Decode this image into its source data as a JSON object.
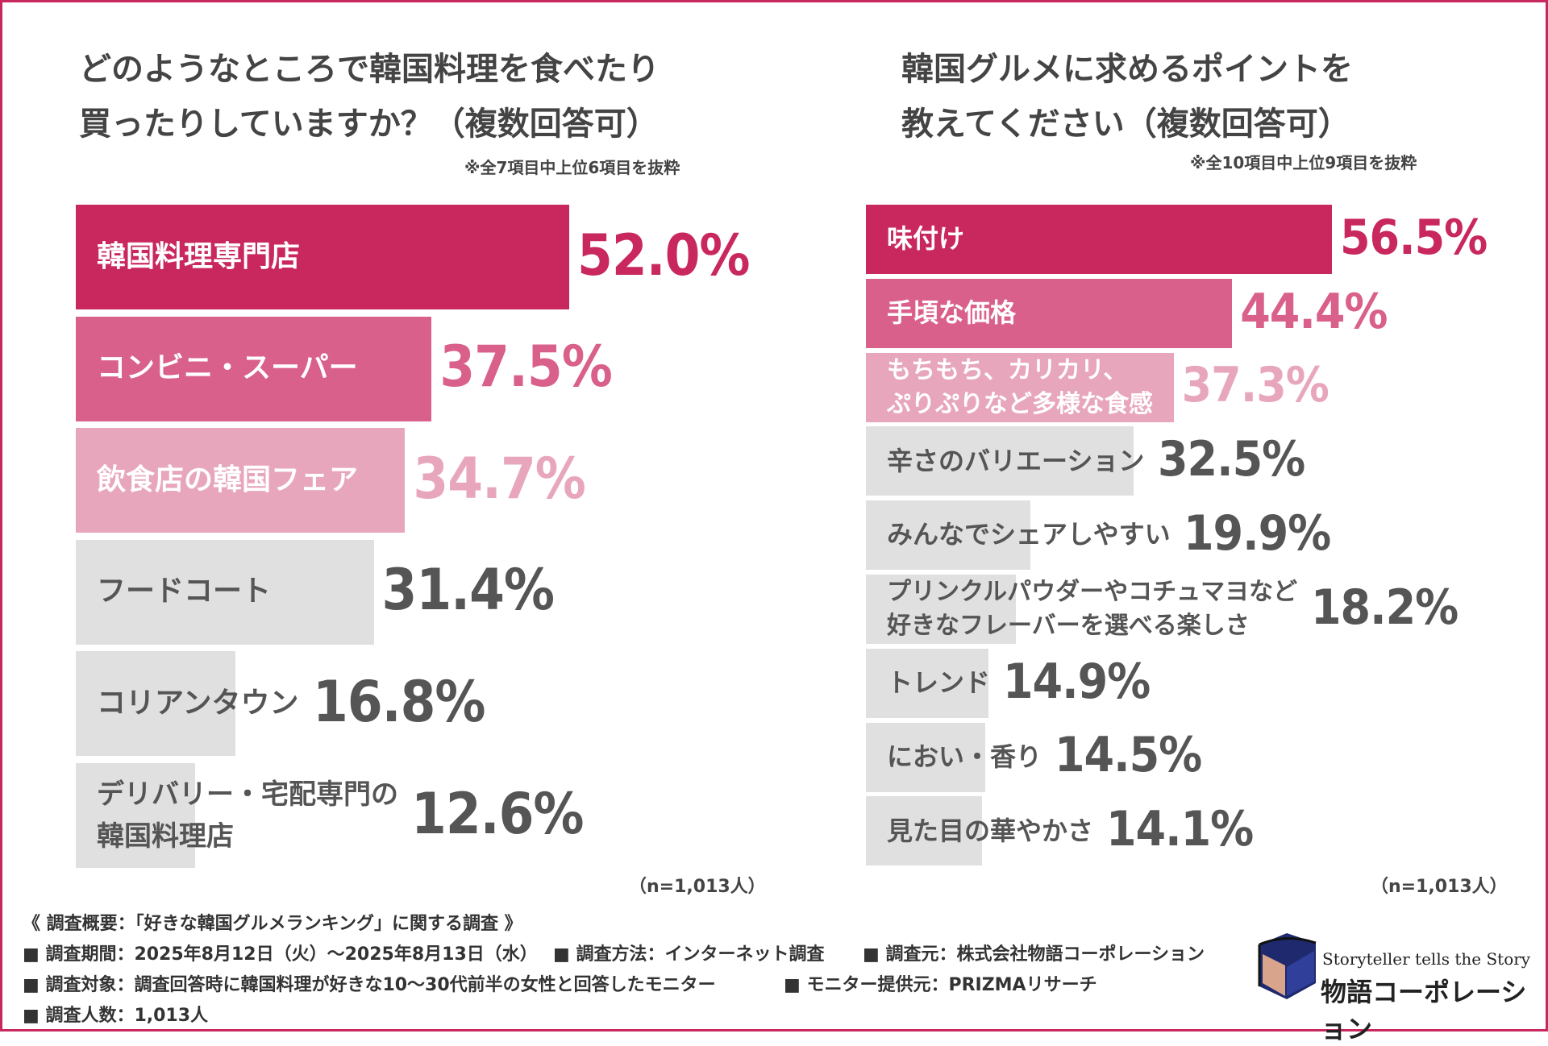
{
  "left": {
    "title_line1": "どのようなところで韓国料理を食べたり",
    "title_line2": "買ったりしていますか？（複数回答可）",
    "note": "※全7項目中上位6項目を抜粋",
    "n_note": "（n=1,013人）"
  },
  "right": {
    "title_line1": "韓国グルメに求めるポイントを",
    "title_line2": "教えてください（複数回答可）",
    "note": "※全10項目中上位9項目を抜粋",
    "n_note": "（n=1,013人）"
  },
  "colors": {
    "rank1": "#c9285e",
    "rank2": "#d9608a",
    "rank3": "#e8a6bd",
    "other": "#e0e0e0",
    "border": "#c9285e"
  },
  "chart_data": [
    {
      "type": "bar",
      "orientation": "horizontal",
      "categories": [
        "韓国料理専門店",
        "コンビニ・スーパー",
        "飲食店の韓国フェア",
        "フードコート",
        "コリアンタウン",
        "デリバリー・宅配専門の\n韓国料理店"
      ],
      "values": [
        52.0,
        37.5,
        34.7,
        31.4,
        16.8,
        12.6
      ],
      "labels": [
        "52.0%",
        "37.5%",
        "34.7%",
        "31.4%",
        "16.8%",
        "12.6%"
      ],
      "title": "どのようなところで韓国料理を食べたり買ったりしていますか？（複数回答可）"
    },
    {
      "type": "bar",
      "orientation": "horizontal",
      "categories": [
        "味付け",
        "手頃な価格",
        "もちもち、カリカリ、\nぷりぷりなど多様な食感",
        "辛さのバリエーション",
        "みんなでシェアしやすい",
        "プリンクルパウダーやコチュマヨなど\n好きなフレーバーを選べる楽しさ",
        "トレンド",
        "におい・香り",
        "見た目の華やかさ"
      ],
      "values": [
        56.5,
        44.4,
        37.3,
        32.5,
        19.9,
        18.2,
        14.9,
        14.5,
        14.1
      ],
      "labels": [
        "56.5%",
        "44.4%",
        "37.3%",
        "32.5%",
        "19.9%",
        "18.2%",
        "14.9%",
        "14.5%",
        "14.1%"
      ],
      "title": "韓国グルメに求めるポイントを教えてください（複数回答可）"
    }
  ],
  "footer": {
    "heading": "《 調査概要：「好きな韓国グルメランキング」に関する調査 》",
    "line1a": "■ 調査期間：2025年8月12日（火）～2025年8月13日（水）",
    "line1b": "■ 調査方法：インターネット調査",
    "line1c": "■ 調査元：株式会社物語コーポレーション",
    "line2a": "■ 調査対象：調査回答時に韓国料理が好きな10～30代前半の女性と回答したモニター",
    "line2b": "■ モニター提供元：PRIZMAリサーチ",
    "line3": "■ 調査人数：1,013人"
  },
  "logo": {
    "tagline": "Storyteller tells the Story",
    "name": "物語コーポレーション",
    "icon": "book-icon"
  }
}
